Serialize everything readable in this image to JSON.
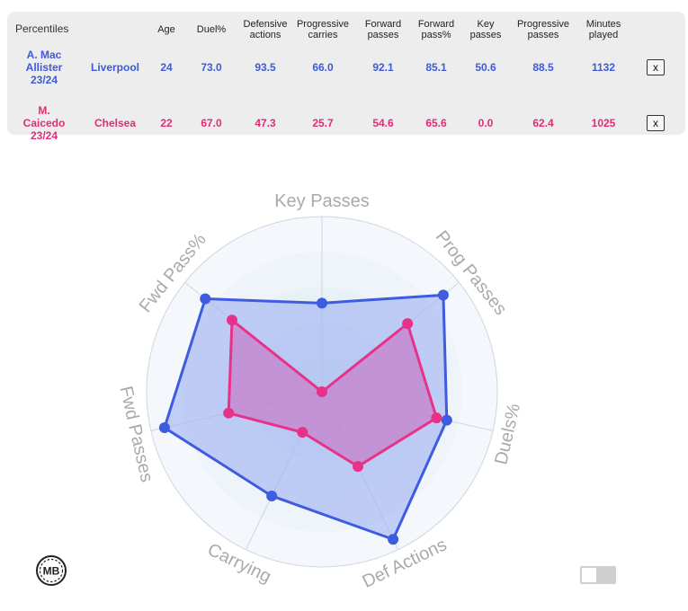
{
  "table": {
    "corner_label": "Percentiles",
    "headers": [
      {
        "lines": [
          "Age"
        ]
      },
      {
        "lines": [
          "Duel%"
        ]
      },
      {
        "lines": [
          "Defensive",
          "actions"
        ]
      },
      {
        "lines": [
          "Progressive",
          "carries"
        ]
      },
      {
        "lines": [
          "Forward",
          "passes"
        ]
      },
      {
        "lines": [
          "Forward",
          "pass%"
        ]
      },
      {
        "lines": [
          "Key",
          "passes"
        ]
      },
      {
        "lines": [
          "Progressive",
          "passes"
        ]
      },
      {
        "lines": [
          "Minutes",
          "played"
        ]
      }
    ],
    "rows": [
      {
        "name_lines": [
          "A. Mac",
          "Allister",
          "23/24"
        ],
        "team": "Liverpool",
        "color": "#3d5ad8",
        "values": [
          "24",
          "73.0",
          "93.5",
          "66.0",
          "92.1",
          "85.1",
          "50.6",
          "88.5",
          "1132"
        ],
        "remove_label": "x"
      },
      {
        "name_lines": [
          "M.",
          "Caicedo",
          "23/24"
        ],
        "team": "Chelsea",
        "color": "#e02c78",
        "values": [
          "22",
          "67.0",
          "47.3",
          "25.7",
          "54.6",
          "65.6",
          "0.0",
          "62.4",
          "1025"
        ],
        "remove_label": "x"
      }
    ]
  },
  "radar": {
    "axes": [
      "Key Passes",
      "Prog Passes",
      "Duels%",
      "Def Actions",
      "Carrying",
      "Fwd Passes",
      "Fwd Pass%"
    ],
    "max": 100,
    "rings": 5,
    "series": [
      {
        "player": "A. Mac Allister 23/24",
        "stroke": "#3d5ce0",
        "fill": "#9fb3f2",
        "values": [
          50.6,
          88.5,
          73.0,
          93.5,
          66.0,
          92.1,
          85.1
        ]
      },
      {
        "player": "M. Caicedo 23/24",
        "stroke": "#e8328a",
        "fill": "#cc66bb",
        "values": [
          0.0,
          62.4,
          67.0,
          47.3,
          25.7,
          54.6,
          65.6
        ]
      }
    ]
  },
  "logo": {
    "text": "MB",
    "icon": "mb-logo-icon"
  },
  "toggle": {
    "state": "off"
  }
}
